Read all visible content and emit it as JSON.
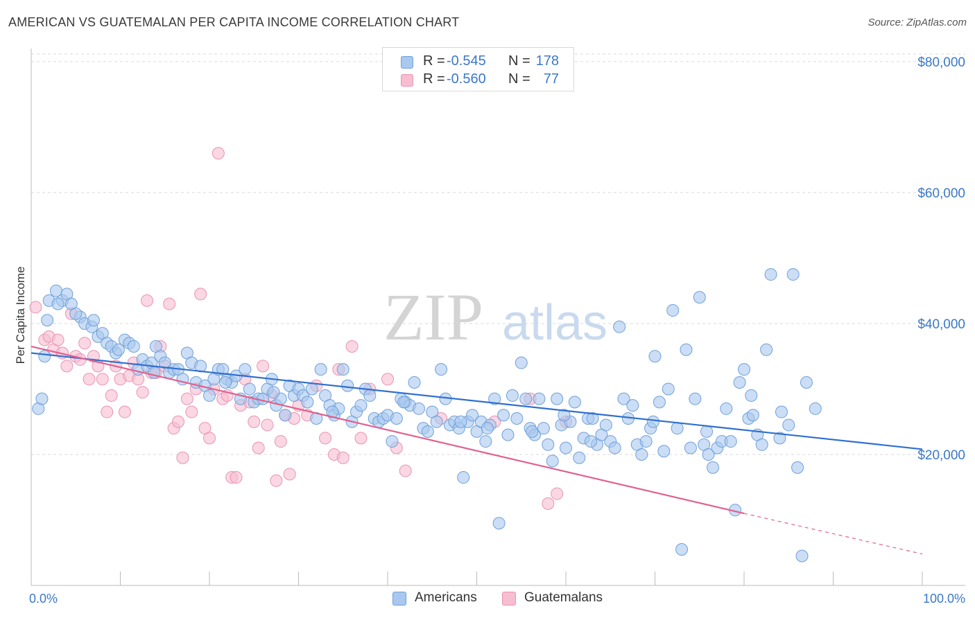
{
  "title": "AMERICAN VS GUATEMALAN PER CAPITA INCOME CORRELATION CHART",
  "source": "Source: ZipAtlas.com",
  "watermark": {
    "zip": "ZIP",
    "atlas": "atlas"
  },
  "legend": {
    "rows": [
      {
        "r_label": "R =",
        "r_value": "-0.545",
        "n_label": "N =",
        "n_value": "178"
      },
      {
        "r_label": "R =",
        "r_value": "-0.560",
        "n_label": "N =",
        "n_value": "77"
      }
    ]
  },
  "colors": {
    "americans_fill": "#a9c8ef",
    "americans_stroke": "#6f9fd9",
    "americans_line": "#2f6fd0",
    "guatemalans_fill": "#f7bdd0",
    "guatemalans_stroke": "#e993b2",
    "guatemalans_line": "#e0608f",
    "tick_label": "#3a78c9",
    "grid": "#d9d9d9"
  },
  "chart_data": {
    "type": "scatter",
    "title": "AMERICAN VS GUATEMALAN PER CAPITA INCOME CORRELATION CHART",
    "ylabel": "Per Capita Income",
    "xlabel": "",
    "x_tick_labels": [
      "0.0%",
      "100.0%"
    ],
    "y_tick_labels": [
      "$20,000",
      "$40,000",
      "$60,000",
      "$80,000"
    ],
    "xlim": [
      0,
      100
    ],
    "ylim": [
      0,
      82000
    ],
    "y_ticks": [
      20000,
      40000,
      60000,
      80000
    ],
    "grid": true,
    "legend_position": "top-center",
    "series": [
      {
        "name": "Americans",
        "r": -0.545,
        "n": 178,
        "trend": {
          "x0": 0,
          "y0": 35500,
          "x1": 100,
          "y1": 20800
        },
        "points": [
          [
            0.8,
            27000
          ],
          [
            1.2,
            28500
          ],
          [
            1.5,
            35000
          ],
          [
            2.0,
            43500
          ],
          [
            1.8,
            40500
          ],
          [
            2.8,
            45000
          ],
          [
            3.5,
            43500
          ],
          [
            4.0,
            44500
          ],
          [
            4.5,
            43000
          ],
          [
            5.5,
            41000
          ],
          [
            6.0,
            40000
          ],
          [
            6.8,
            39500
          ],
          [
            7.5,
            38000
          ],
          [
            8.0,
            38500
          ],
          [
            8.5,
            37000
          ],
          [
            9.0,
            36500
          ],
          [
            9.5,
            35500
          ],
          [
            10.5,
            37500
          ],
          [
            11.0,
            37000
          ],
          [
            11.5,
            36500
          ],
          [
            12.0,
            33000
          ],
          [
            12.5,
            34500
          ],
          [
            13.0,
            33500
          ],
          [
            13.5,
            34000
          ],
          [
            14.0,
            36500
          ],
          [
            14.5,
            35000
          ],
          [
            15.0,
            34000
          ],
          [
            15.5,
            32500
          ],
          [
            16.0,
            33000
          ],
          [
            16.5,
            33000
          ],
          [
            17.0,
            31500
          ],
          [
            17.5,
            35500
          ],
          [
            18.0,
            34000
          ],
          [
            18.5,
            31000
          ],
          [
            19.0,
            33500
          ],
          [
            19.5,
            30500
          ],
          [
            20.0,
            29000
          ],
          [
            20.5,
            31500
          ],
          [
            21.0,
            33000
          ],
          [
            21.5,
            33000
          ],
          [
            22.0,
            31500
          ],
          [
            22.5,
            31000
          ],
          [
            23.0,
            32000
          ],
          [
            23.5,
            28500
          ],
          [
            24.0,
            33000
          ],
          [
            24.5,
            30000
          ],
          [
            25.0,
            28000
          ],
          [
            25.5,
            28500
          ],
          [
            26.0,
            28500
          ],
          [
            26.5,
            30000
          ],
          [
            27.0,
            31500
          ],
          [
            27.5,
            27500
          ],
          [
            28.0,
            28500
          ],
          [
            28.5,
            26000
          ],
          [
            29.0,
            30500
          ],
          [
            29.5,
            29000
          ],
          [
            30.0,
            30000
          ],
          [
            30.5,
            29000
          ],
          [
            31.0,
            28000
          ],
          [
            31.5,
            30000
          ],
          [
            32.0,
            25500
          ],
          [
            32.5,
            33000
          ],
          [
            33.0,
            29000
          ],
          [
            33.5,
            27500
          ],
          [
            34.0,
            26000
          ],
          [
            34.5,
            27000
          ],
          [
            35.0,
            33000
          ],
          [
            35.5,
            30500
          ],
          [
            36.0,
            25000
          ],
          [
            36.5,
            26500
          ],
          [
            37.0,
            27500
          ],
          [
            37.5,
            30000
          ],
          [
            38.0,
            29000
          ],
          [
            38.5,
            25500
          ],
          [
            39.0,
            25000
          ],
          [
            39.5,
            25500
          ],
          [
            40.0,
            26000
          ],
          [
            40.5,
            22000
          ],
          [
            41.0,
            25500
          ],
          [
            41.5,
            28500
          ],
          [
            42.0,
            28000
          ],
          [
            42.5,
            27500
          ],
          [
            43.0,
            31000
          ],
          [
            43.5,
            27000
          ],
          [
            44.0,
            24000
          ],
          [
            44.5,
            23500
          ],
          [
            45.0,
            26500
          ],
          [
            45.5,
            25000
          ],
          [
            46.0,
            33000
          ],
          [
            46.5,
            28500
          ],
          [
            47.0,
            24500
          ],
          [
            47.5,
            25000
          ],
          [
            48.0,
            24000
          ],
          [
            48.5,
            16500
          ],
          [
            49.0,
            25000
          ],
          [
            49.5,
            26000
          ],
          [
            50.0,
            23500
          ],
          [
            50.5,
            25000
          ],
          [
            51.0,
            22000
          ],
          [
            51.5,
            24500
          ],
          [
            52.0,
            28500
          ],
          [
            52.5,
            9500
          ],
          [
            53.0,
            26000
          ],
          [
            53.5,
            23000
          ],
          [
            54.0,
            29000
          ],
          [
            54.5,
            25500
          ],
          [
            55.0,
            34000
          ],
          [
            55.5,
            28500
          ],
          [
            56.0,
            24000
          ],
          [
            56.5,
            23000
          ],
          [
            57.0,
            28500
          ],
          [
            57.5,
            24000
          ],
          [
            58.0,
            21500
          ],
          [
            58.5,
            19000
          ],
          [
            59.0,
            28500
          ],
          [
            59.5,
            24500
          ],
          [
            60.0,
            21000
          ],
          [
            60.5,
            25000
          ],
          [
            61.0,
            28000
          ],
          [
            61.5,
            19500
          ],
          [
            62.0,
            22500
          ],
          [
            62.5,
            25500
          ],
          [
            63.0,
            25500
          ],
          [
            63.5,
            21500
          ],
          [
            64.0,
            23000
          ],
          [
            64.5,
            24500
          ],
          [
            65.0,
            22000
          ],
          [
            65.5,
            21000
          ],
          [
            66.0,
            39500
          ],
          [
            66.5,
            28500
          ],
          [
            67.0,
            25500
          ],
          [
            67.5,
            27500
          ],
          [
            68.0,
            21500
          ],
          [
            68.5,
            20000
          ],
          [
            69.0,
            22000
          ],
          [
            69.5,
            24000
          ],
          [
            70.0,
            35000
          ],
          [
            70.5,
            28000
          ],
          [
            71.0,
            20500
          ],
          [
            71.5,
            30000
          ],
          [
            72.0,
            42000
          ],
          [
            72.5,
            24000
          ],
          [
            73.0,
            5500
          ],
          [
            73.5,
            36000
          ],
          [
            74.0,
            21000
          ],
          [
            74.5,
            28500
          ],
          [
            75.0,
            44000
          ],
          [
            75.5,
            21500
          ],
          [
            76.0,
            20000
          ],
          [
            76.5,
            18000
          ],
          [
            77.0,
            21000
          ],
          [
            77.5,
            22000
          ],
          [
            78.0,
            27000
          ],
          [
            78.5,
            22000
          ],
          [
            79.0,
            11500
          ],
          [
            79.5,
            31000
          ],
          [
            80.0,
            33000
          ],
          [
            80.5,
            25500
          ],
          [
            81.0,
            26000
          ],
          [
            81.5,
            23000
          ],
          [
            82.0,
            21500
          ],
          [
            82.5,
            36000
          ],
          [
            83.0,
            47500
          ],
          [
            84.0,
            22500
          ],
          [
            85.0,
            24500
          ],
          [
            85.5,
            47500
          ],
          [
            86.0,
            18000
          ],
          [
            86.5,
            4500
          ],
          [
            87.0,
            31000
          ],
          [
            88.0,
            27000
          ],
          [
            3.0,
            43000
          ],
          [
            5.0,
            41500
          ],
          [
            7.0,
            40500
          ],
          [
            9.8,
            36000
          ],
          [
            13.8,
            32500
          ],
          [
            21.8,
            31000
          ],
          [
            27.2,
            29500
          ],
          [
            33.8,
            26500
          ],
          [
            41.8,
            28000
          ],
          [
            48.2,
            25000
          ],
          [
            56.2,
            23500
          ],
          [
            62.8,
            22000
          ],
          [
            69.8,
            25000
          ],
          [
            75.8,
            23500
          ],
          [
            80.8,
            29000
          ],
          [
            84.2,
            26500
          ],
          [
            59.8,
            26000
          ],
          [
            51.2,
            24000
          ]
        ]
      },
      {
        "name": "Guatemalans",
        "r": -0.56,
        "n": 77,
        "trend": {
          "x0": 0,
          "y0": 36500,
          "x1": 80,
          "y1": 11000,
          "dash_to_x": 100,
          "dash_to_y": 4800
        },
        "points": [
          [
            0.5,
            42500
          ],
          [
            1.5,
            37500
          ],
          [
            2.0,
            38000
          ],
          [
            2.5,
            36000
          ],
          [
            3.0,
            37500
          ],
          [
            3.5,
            35500
          ],
          [
            4.0,
            33500
          ],
          [
            4.5,
            41500
          ],
          [
            5.0,
            35000
          ],
          [
            5.5,
            34500
          ],
          [
            6.0,
            37000
          ],
          [
            6.5,
            31500
          ],
          [
            7.0,
            35000
          ],
          [
            7.5,
            33500
          ],
          [
            8.0,
            31500
          ],
          [
            8.5,
            26500
          ],
          [
            9.0,
            29000
          ],
          [
            9.5,
            33500
          ],
          [
            10.0,
            31500
          ],
          [
            10.5,
            26500
          ],
          [
            11.0,
            32000
          ],
          [
            11.5,
            34000
          ],
          [
            12.0,
            31500
          ],
          [
            12.5,
            29500
          ],
          [
            13.0,
            43500
          ],
          [
            13.5,
            32500
          ],
          [
            14.0,
            32500
          ],
          [
            14.5,
            36500
          ],
          [
            15.0,
            33500
          ],
          [
            15.5,
            43000
          ],
          [
            16.0,
            24000
          ],
          [
            16.5,
            25000
          ],
          [
            17.0,
            19500
          ],
          [
            17.5,
            28500
          ],
          [
            18.0,
            26500
          ],
          [
            18.5,
            30000
          ],
          [
            19.0,
            44500
          ],
          [
            19.5,
            24000
          ],
          [
            20.0,
            22500
          ],
          [
            20.5,
            30000
          ],
          [
            21.0,
            66000
          ],
          [
            21.5,
            28500
          ],
          [
            22.0,
            29000
          ],
          [
            22.5,
            16500
          ],
          [
            23.0,
            16500
          ],
          [
            23.5,
            27500
          ],
          [
            24.0,
            31500
          ],
          [
            24.5,
            28000
          ],
          [
            25.0,
            25000
          ],
          [
            25.5,
            21000
          ],
          [
            26.0,
            33500
          ],
          [
            26.5,
            24500
          ],
          [
            27.0,
            29000
          ],
          [
            27.5,
            16000
          ],
          [
            28.0,
            22000
          ],
          [
            28.5,
            26000
          ],
          [
            29.0,
            17000
          ],
          [
            30.0,
            27500
          ],
          [
            31.0,
            26000
          ],
          [
            32.0,
            30500
          ],
          [
            33.0,
            22500
          ],
          [
            34.0,
            20000
          ],
          [
            35.0,
            19500
          ],
          [
            36.0,
            36500
          ],
          [
            37.0,
            22500
          ],
          [
            40.0,
            31500
          ],
          [
            41.0,
            21000
          ],
          [
            42.0,
            17500
          ],
          [
            46.0,
            25500
          ],
          [
            52.0,
            25000
          ],
          [
            56.0,
            28500
          ],
          [
            58.0,
            12500
          ],
          [
            59.0,
            14000
          ],
          [
            34.5,
            33000
          ],
          [
            29.5,
            25500
          ],
          [
            38.0,
            30000
          ],
          [
            60.0,
            25000
          ]
        ]
      }
    ]
  },
  "bottom_legend": [
    {
      "label": "Americans"
    },
    {
      "label": "Guatemalans"
    }
  ]
}
